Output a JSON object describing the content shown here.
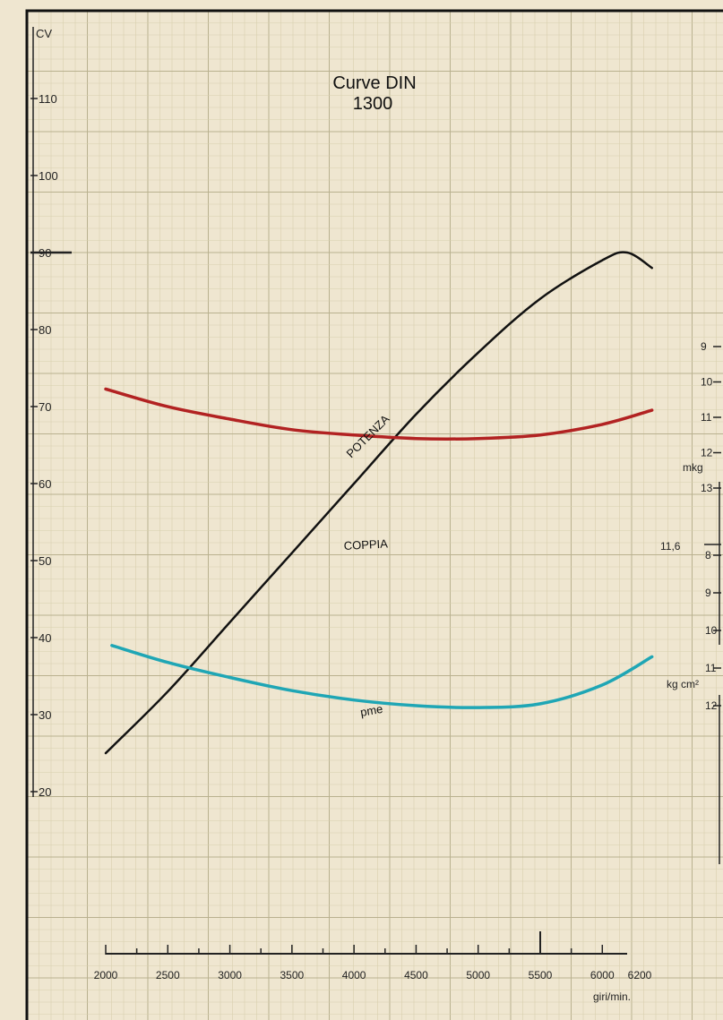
{
  "chart_data": {
    "type": "line",
    "title": "Curve DIN",
    "subtitle": "1300",
    "x_unit": "giri/min.",
    "x_ticks": [
      2000,
      2500,
      3000,
      3500,
      4000,
      4500,
      5000,
      5500,
      6000,
      6200
    ],
    "x_range": [
      2000,
      6200
    ],
    "y_left_unit": "CV",
    "y_left_ticks": [
      20,
      30,
      40,
      50,
      60,
      70,
      80,
      90,
      100,
      110
    ],
    "y_left_range": [
      15,
      120
    ],
    "y_torque_unit": "mkg",
    "y_torque_ticks": [
      9,
      10,
      11,
      12,
      13
    ],
    "y_torque_marker": "11,6",
    "y_pressure_unit": "kg cm²",
    "y_pressure_ticks": [
      8,
      9,
      10,
      11,
      12
    ],
    "grid": true,
    "series": [
      {
        "name": "POTENZA",
        "axis": "CV",
        "color": "#111111",
        "x": [
          2000,
          2500,
          3000,
          3500,
          4000,
          4500,
          5000,
          5500,
          6000,
          6200,
          6400
        ],
        "y": [
          25,
          33,
          42,
          51,
          60,
          69,
          77,
          84,
          89,
          90,
          88
        ]
      },
      {
        "name": "COPPIA",
        "axis": "mkg",
        "color": "#b22222",
        "x": [
          2000,
          2500,
          3000,
          3500,
          4000,
          4500,
          5000,
          5500,
          6000,
          6400
        ],
        "y": [
          10.2,
          10.7,
          11.05,
          11.35,
          11.5,
          11.6,
          11.6,
          11.5,
          11.2,
          10.8
        ]
      },
      {
        "name": "pme",
        "axis": "kg cm²",
        "color": "#1fa6b5",
        "x": [
          2050,
          2500,
          3000,
          3500,
          4000,
          4500,
          5000,
          5500,
          6000,
          6400
        ],
        "y": [
          10.4,
          10.85,
          11.25,
          11.6,
          11.85,
          12.0,
          12.05,
          11.95,
          11.45,
          10.7
        ]
      }
    ]
  }
}
